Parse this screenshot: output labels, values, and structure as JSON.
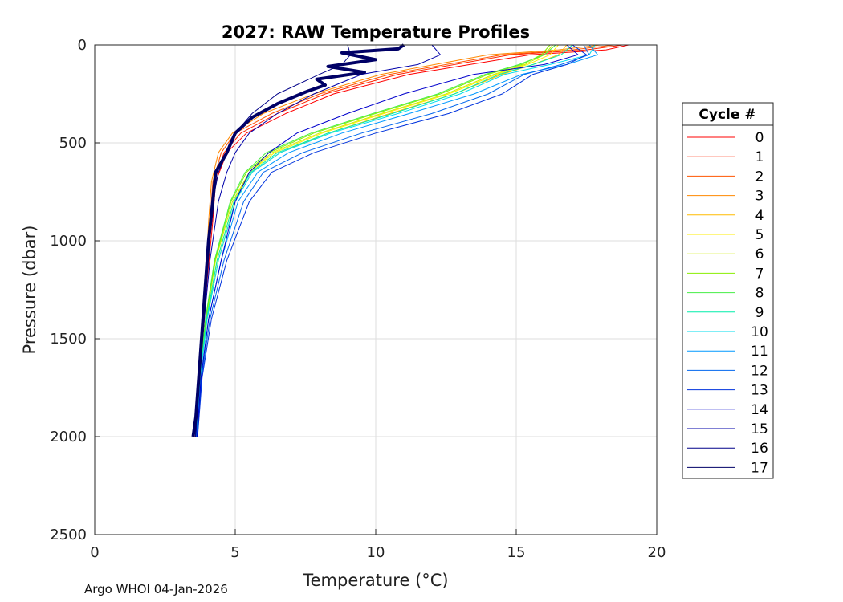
{
  "footer": "Argo WHOI 04-Jan-2026",
  "chart_data": {
    "type": "line",
    "title": "2027: RAW Temperature Profiles",
    "xlabel": "Temperature (°C)",
    "ylabel": "Pressure (dbar)",
    "xlim": [
      0,
      20
    ],
    "ylim": [
      0,
      2500
    ],
    "y_reversed": true,
    "grid": true,
    "xticks": [
      0,
      5,
      10,
      15,
      20
    ],
    "yticks": [
      0,
      500,
      1000,
      1500,
      2000,
      2500
    ],
    "legend": {
      "title": "Cycle #",
      "position": "right"
    },
    "series": [
      {
        "name": "0",
        "color": "#ff0000",
        "x": [
          19.0,
          18.2,
          15.5,
          11.2,
          8.5,
          6.8,
          5.4,
          4.7,
          4.3,
          4.2,
          4.0,
          3.85,
          3.7,
          3.6
        ],
        "y": [
          0,
          25,
          50,
          150,
          250,
          350,
          450,
          550,
          700,
          900,
          1200,
          1500,
          1800,
          2000
        ]
      },
      {
        "name": "1",
        "color": "#ff2200",
        "x": [
          18.8,
          17.5,
          14.8,
          10.8,
          8.2,
          6.5,
          5.2,
          4.6,
          4.25,
          4.15,
          3.98,
          3.83,
          3.68,
          3.58
        ],
        "y": [
          0,
          25,
          50,
          150,
          250,
          350,
          450,
          550,
          700,
          900,
          1200,
          1500,
          1800,
          2000
        ]
      },
      {
        "name": "2",
        "color": "#ff5500",
        "x": [
          18.5,
          17.0,
          14.5,
          10.5,
          8.0,
          6.3,
          5.0,
          4.5,
          4.2,
          4.1,
          3.96,
          3.82,
          3.68,
          3.58
        ],
        "y": [
          0,
          25,
          50,
          150,
          250,
          350,
          450,
          550,
          700,
          900,
          1200,
          1500,
          1800,
          2000
        ]
      },
      {
        "name": "3",
        "color": "#ff8800",
        "x": [
          18.0,
          16.5,
          14.0,
          10.2,
          7.8,
          6.0,
          4.9,
          4.4,
          4.15,
          4.05,
          3.95,
          3.82,
          3.68,
          3.58
        ],
        "y": [
          0,
          25,
          50,
          150,
          250,
          350,
          450,
          550,
          700,
          900,
          1200,
          1500,
          1800,
          2000
        ]
      },
      {
        "name": "4",
        "color": "#ffbb00",
        "x": [
          16.8,
          16.5,
          15.6,
          14.5,
          12.8,
          10.5,
          8.3,
          6.6,
          5.6,
          5.0,
          4.4,
          4.0,
          3.75,
          3.62
        ],
        "y": [
          0,
          50,
          100,
          150,
          250,
          350,
          450,
          550,
          650,
          800,
          1100,
          1400,
          1700,
          2000
        ]
      },
      {
        "name": "5",
        "color": "#ffee00",
        "x": [
          16.5,
          16.2,
          15.4,
          14.3,
          12.6,
          10.3,
          8.1,
          6.4,
          5.5,
          4.95,
          4.35,
          3.98,
          3.74,
          3.61
        ],
        "y": [
          0,
          50,
          100,
          150,
          250,
          350,
          450,
          550,
          650,
          800,
          1100,
          1400,
          1700,
          2000
        ]
      },
      {
        "name": "6",
        "color": "#ccee00",
        "x": [
          16.3,
          16.0,
          15.3,
          14.2,
          12.5,
          10.2,
          8.0,
          6.3,
          5.5,
          4.9,
          4.3,
          3.96,
          3.73,
          3.6
        ],
        "y": [
          0,
          50,
          100,
          150,
          250,
          350,
          450,
          550,
          650,
          800,
          1100,
          1400,
          1700,
          2000
        ]
      },
      {
        "name": "7",
        "color": "#88ee00",
        "x": [
          16.2,
          15.9,
          15.2,
          14.0,
          12.3,
          10.0,
          7.8,
          6.2,
          5.4,
          4.85,
          4.28,
          3.95,
          3.72,
          3.6
        ],
        "y": [
          0,
          50,
          100,
          150,
          250,
          350,
          450,
          550,
          650,
          800,
          1100,
          1400,
          1700,
          2000
        ]
      },
      {
        "name": "8",
        "color": "#44ee44",
        "x": [
          16.4,
          16.0,
          15.1,
          13.9,
          12.2,
          9.9,
          7.7,
          6.1,
          5.35,
          4.82,
          4.26,
          3.94,
          3.72,
          3.6
        ],
        "y": [
          0,
          50,
          100,
          150,
          250,
          350,
          450,
          550,
          650,
          800,
          1100,
          1400,
          1700,
          2000
        ]
      },
      {
        "name": "9",
        "color": "#00eeaa",
        "x": [
          17.0,
          16.6,
          15.6,
          14.4,
          12.8,
          10.6,
          8.3,
          6.5,
          5.55,
          4.95,
          4.35,
          3.98,
          3.74,
          3.61
        ],
        "y": [
          0,
          50,
          100,
          150,
          250,
          350,
          450,
          550,
          650,
          800,
          1100,
          1400,
          1700,
          2000
        ]
      },
      {
        "name": "10",
        "color": "#00ddee",
        "x": [
          17.8,
          17.6,
          16.2,
          14.6,
          13.0,
          10.8,
          8.4,
          6.6,
          5.6,
          5.0,
          4.4,
          4.0,
          3.75,
          3.62
        ],
        "y": [
          0,
          50,
          100,
          150,
          250,
          350,
          450,
          550,
          650,
          800,
          1100,
          1400,
          1700,
          2000
        ]
      },
      {
        "name": "11",
        "color": "#0099ff",
        "x": [
          17.6,
          17.9,
          16.8,
          15.2,
          13.5,
          11.2,
          8.8,
          6.9,
          5.8,
          5.1,
          4.5,
          4.05,
          3.78,
          3.63
        ],
        "y": [
          0,
          50,
          100,
          150,
          250,
          350,
          450,
          550,
          650,
          800,
          1100,
          1400,
          1700,
          2000
        ]
      },
      {
        "name": "12",
        "color": "#0066ee",
        "x": [
          17.4,
          17.6,
          16.6,
          15.3,
          14.0,
          12.0,
          9.5,
          7.4,
          6.0,
          5.3,
          4.6,
          4.1,
          3.8,
          3.65
        ],
        "y": [
          0,
          50,
          100,
          150,
          250,
          350,
          450,
          550,
          650,
          800,
          1100,
          1400,
          1700,
          2000
        ]
      },
      {
        "name": "13",
        "color": "#0033dd",
        "x": [
          17.0,
          17.5,
          16.8,
          15.6,
          14.5,
          12.6,
          10.0,
          7.8,
          6.3,
          5.5,
          4.7,
          4.15,
          3.82,
          3.66
        ],
        "y": [
          0,
          50,
          100,
          150,
          250,
          350,
          450,
          550,
          650,
          800,
          1100,
          1400,
          1700,
          2000
        ]
      },
      {
        "name": "14",
        "color": "#0000cc",
        "x": [
          16.8,
          17.2,
          16.0,
          13.5,
          11.0,
          9.0,
          7.2,
          6.2,
          5.5,
          5.0,
          4.5,
          4.05,
          3.78,
          3.64
        ],
        "y": [
          0,
          50,
          100,
          150,
          250,
          350,
          450,
          550,
          650,
          800,
          1100,
          1400,
          1700,
          2000
        ]
      },
      {
        "name": "15",
        "color": "#0000aa",
        "x": [
          12.0,
          12.3,
          11.5,
          9.5,
          7.8,
          6.5,
          5.5,
          5.0,
          4.7,
          4.4,
          4.1,
          3.9,
          3.72,
          3.6
        ],
        "y": [
          0,
          50,
          100,
          150,
          250,
          350,
          450,
          550,
          650,
          800,
          1100,
          1400,
          1700,
          2000
        ]
      },
      {
        "name": "16",
        "color": "#000088",
        "x": [
          9.0,
          9.1,
          8.8,
          8.0,
          6.5,
          5.6,
          5.0,
          4.7,
          4.4,
          4.2,
          4.0,
          3.85,
          3.7,
          3.58
        ],
        "y": [
          0,
          50,
          100,
          150,
          250,
          350,
          450,
          550,
          650,
          800,
          1100,
          1400,
          1700,
          2000
        ]
      },
      {
        "name": "17",
        "color": "#000066",
        "x": [
          11.0,
          10.8,
          8.8,
          10.0,
          8.3,
          9.6,
          7.9,
          8.2,
          7.5,
          6.5,
          5.6,
          5.0,
          4.7,
          4.3,
          4.2,
          4.05,
          3.9,
          3.75,
          3.6,
          3.5
        ],
        "y": [
          0,
          20,
          40,
          75,
          110,
          140,
          175,
          205,
          240,
          300,
          370,
          450,
          550,
          650,
          800,
          1000,
          1300,
          1600,
          1900,
          2000
        ],
        "width": 4
      }
    ]
  }
}
